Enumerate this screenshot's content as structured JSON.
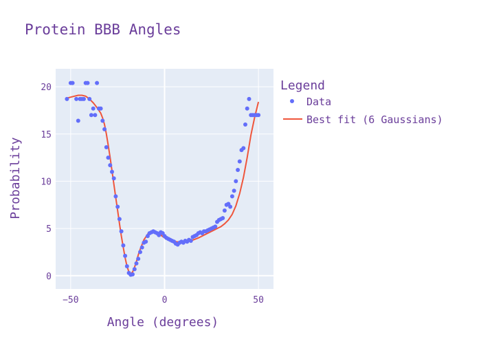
{
  "chart_data": {
    "type": "scatter",
    "title": "Protein BBB Angles",
    "xlabel": "Angle (degrees)",
    "ylabel": "Probability",
    "xlim": [
      -58,
      58
    ],
    "ylim": [
      -1.4,
      21.9
    ],
    "xticks": [
      -50,
      0,
      50
    ],
    "xtick_labels": [
      "−50",
      "0",
      "50"
    ],
    "yticks": [
      0,
      5,
      10,
      15,
      20
    ],
    "ytick_labels": [
      "0",
      "5",
      "10",
      "15",
      "20"
    ],
    "grid": true,
    "legend_placement": "top-right",
    "legend_title": "Legend",
    "colors": {
      "plot_bg": "#e5ecf6",
      "grid": "#ffffff",
      "data": "#636efa",
      "fit": "#ef553b",
      "text": "#6a3d9a"
    },
    "series": [
      {
        "name": "Data",
        "mode": "markers",
        "x": [
          -52,
          -50,
          -49,
          -47,
          -46,
          -45,
          -44,
          -43,
          -42,
          -41,
          -40,
          -39,
          -38,
          -37,
          -36,
          -35,
          -34,
          -33,
          -32,
          -31,
          -30,
          -29,
          -28,
          -27,
          -26,
          -25,
          -24,
          -23,
          -22,
          -21,
          -20,
          -19,
          -18,
          -17,
          -16,
          -15,
          -14,
          -13,
          -12,
          -11,
          -10,
          -9,
          -8,
          -7,
          -6,
          -5,
          -4,
          -3,
          -2,
          -1,
          0,
          1,
          2,
          3,
          4,
          5,
          6,
          7,
          8,
          9,
          10,
          11,
          12,
          13,
          14,
          15,
          16,
          17,
          18,
          19,
          20,
          21,
          22,
          23,
          24,
          25,
          26,
          27,
          28,
          29,
          30,
          31,
          32,
          33,
          34,
          35,
          36,
          37,
          38,
          39,
          40,
          41,
          42,
          43,
          44,
          45,
          46,
          47,
          48,
          49,
          50
        ],
        "y": [
          18.7,
          20.4,
          20.4,
          18.7,
          16.4,
          18.7,
          18.7,
          18.7,
          20.4,
          20.4,
          18.7,
          17.0,
          17.7,
          17.0,
          20.4,
          17.7,
          17.7,
          16.4,
          15.5,
          13.6,
          12.5,
          11.7,
          11.0,
          10.3,
          8.4,
          7.3,
          6.0,
          4.7,
          3.2,
          2.1,
          1.0,
          0.3,
          0.1,
          0.15,
          0.7,
          1.3,
          1.8,
          2.5,
          3.0,
          3.5,
          3.6,
          4.2,
          4.5,
          4.6,
          4.7,
          4.6,
          4.5,
          4.3,
          4.6,
          4.5,
          4.2,
          4.0,
          3.9,
          3.8,
          3.7,
          3.6,
          3.4,
          3.3,
          3.5,
          3.6,
          3.5,
          3.7,
          3.6,
          3.8,
          3.7,
          4.1,
          4.2,
          4.3,
          4.5,
          4.6,
          4.5,
          4.7,
          4.7,
          4.8,
          4.9,
          5.0,
          5.1,
          5.2,
          5.7,
          5.9,
          6.0,
          6.1,
          6.9,
          7.5,
          7.6,
          7.3,
          8.4,
          9.0,
          10.0,
          11.2,
          12.1,
          13.3,
          13.5,
          16.0,
          17.7,
          18.7,
          17.0,
          17.0,
          17.0,
          17.0,
          17.0
        ]
      },
      {
        "name": "Best fit (6 Gaussians)",
        "mode": "lines",
        "x": [
          -52,
          -50,
          -48,
          -46,
          -44,
          -42,
          -40,
          -38,
          -36,
          -34,
          -33,
          -32,
          -31,
          -30,
          -29,
          -28,
          -27,
          -26,
          -25,
          -24,
          -23,
          -22,
          -21,
          -20,
          -19,
          -18,
          -17,
          -16,
          -15,
          -14,
          -13,
          -12,
          -11,
          -10,
          -9,
          -8,
          -7,
          -6,
          -5,
          -4,
          -3,
          -2,
          -1,
          0,
          2,
          4,
          6,
          8,
          10,
          12,
          14,
          16,
          18,
          20,
          22,
          24,
          26,
          28,
          30,
          32,
          34,
          36,
          38,
          40,
          42,
          44,
          46,
          48,
          50
        ],
        "y": [
          18.8,
          18.9,
          19.0,
          19.1,
          19.1,
          19.0,
          18.7,
          18.3,
          17.8,
          17.2,
          16.7,
          16.0,
          15.0,
          13.8,
          12.5,
          11.1,
          9.7,
          8.3,
          6.9,
          5.5,
          4.2,
          3.0,
          1.9,
          1.0,
          0.4,
          0.2,
          0.4,
          0.9,
          1.5,
          2.2,
          2.8,
          3.3,
          3.8,
          4.1,
          4.4,
          4.6,
          4.7,
          4.75,
          4.7,
          4.6,
          4.45,
          4.3,
          4.15,
          4.0,
          3.85,
          3.7,
          3.6,
          3.55,
          3.55,
          3.6,
          3.7,
          3.85,
          4.0,
          4.2,
          4.4,
          4.6,
          4.8,
          5.0,
          5.2,
          5.5,
          5.9,
          6.5,
          7.4,
          8.7,
          10.4,
          12.5,
          14.9,
          16.8,
          18.4
        ]
      }
    ]
  }
}
